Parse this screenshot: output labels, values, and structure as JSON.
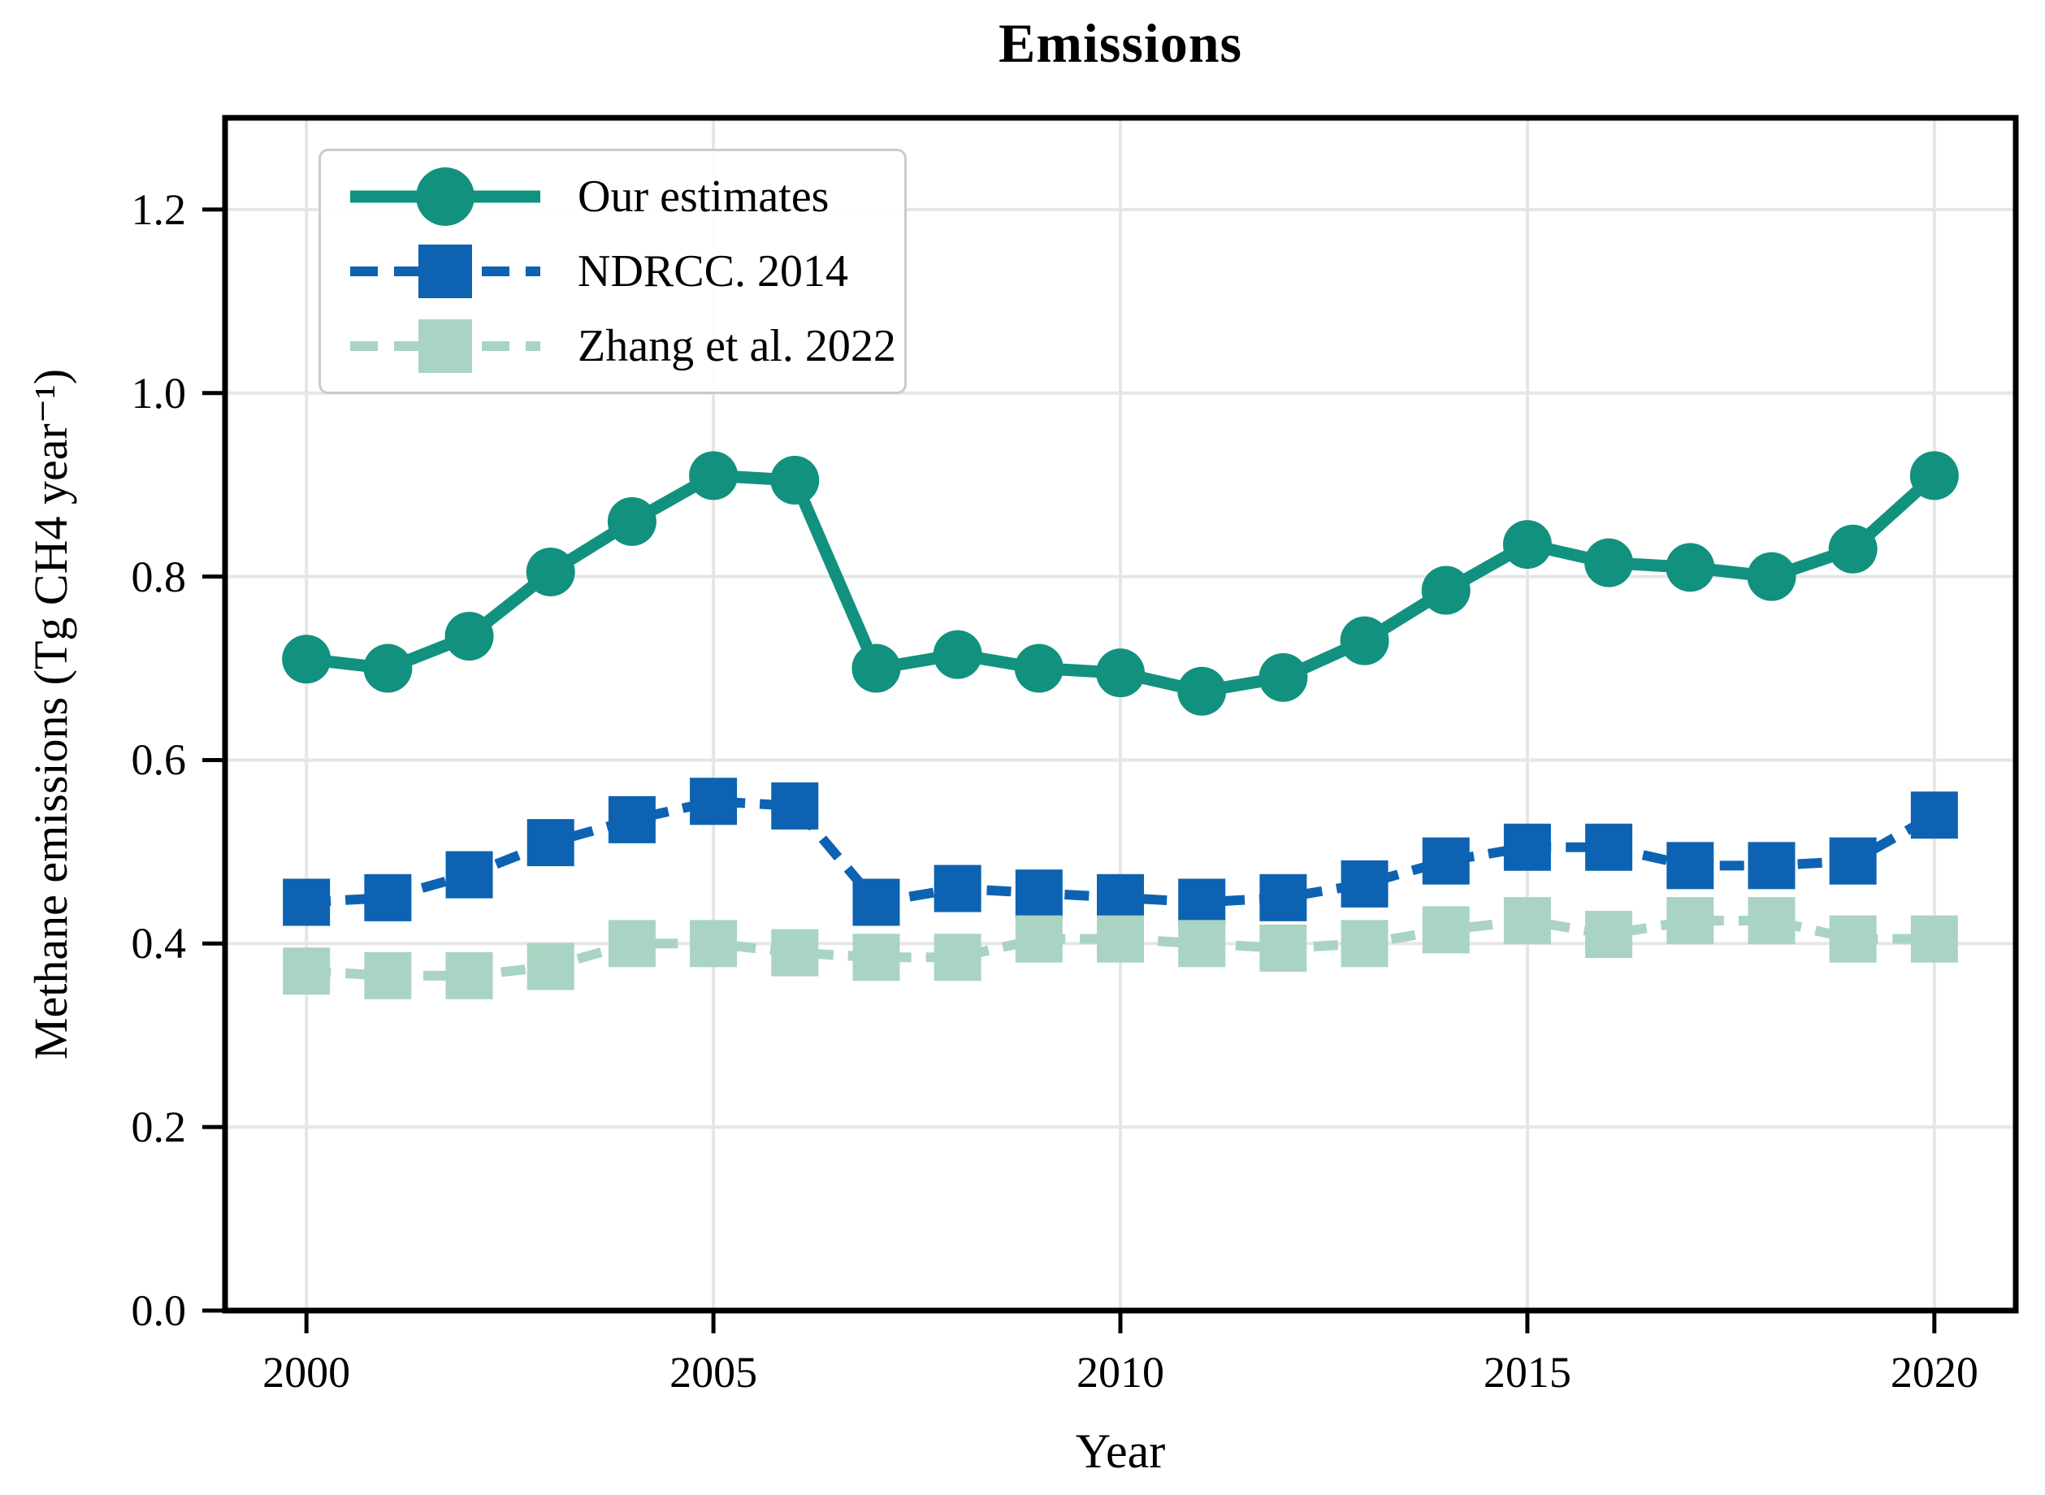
{
  "figure": {
    "title": "Emissions"
  },
  "chart_data": {
    "type": "line",
    "title": "Emissions",
    "xlabel": "Year",
    "ylabel": "Methane emissions (Tg CH4 year⁻¹)",
    "xlim": [
      1999,
      2021
    ],
    "ylim": [
      0.0,
      1.3
    ],
    "xticks": [
      2000,
      2005,
      2010,
      2015,
      2020
    ],
    "yticks": [
      0.0,
      0.2,
      0.4,
      0.6,
      0.8,
      1.0,
      1.2
    ],
    "grid": true,
    "grid_color": "#e6e6e6",
    "spine_color": "#000000",
    "legend_position": "upper-left",
    "x": [
      2000,
      2001,
      2002,
      2003,
      2004,
      2005,
      2006,
      2007,
      2008,
      2009,
      2010,
      2011,
      2012,
      2013,
      2014,
      2015,
      2016,
      2017,
      2018,
      2019,
      2020
    ],
    "series": [
      {
        "name": "Our estimates",
        "color": "#12917f",
        "marker": "circle",
        "linestyle": "solid",
        "values": [
          0.71,
          0.7,
          0.735,
          0.805,
          0.86,
          0.91,
          0.905,
          0.7,
          0.715,
          0.7,
          0.695,
          0.675,
          0.69,
          0.73,
          0.785,
          0.835,
          0.815,
          0.81,
          0.8,
          0.83,
          0.91
        ]
      },
      {
        "name": "NDRCC. 2014",
        "color": "#0d63b2",
        "marker": "square",
        "linestyle": "dashed",
        "values": [
          0.445,
          0.45,
          0.475,
          0.51,
          0.535,
          0.555,
          0.55,
          0.445,
          0.46,
          0.455,
          0.45,
          0.445,
          0.45,
          0.465,
          0.49,
          0.505,
          0.505,
          0.485,
          0.485,
          0.49,
          0.54
        ]
      },
      {
        "name": "Zhang et al. 2022",
        "color": "#a9d4c3",
        "marker": "square",
        "linestyle": "dashed",
        "values": [
          0.37,
          0.365,
          0.365,
          0.375,
          0.4,
          0.4,
          0.39,
          0.385,
          0.385,
          0.405,
          0.405,
          0.4,
          0.395,
          0.4,
          0.415,
          0.425,
          0.41,
          0.425,
          0.425,
          0.405,
          0.405
        ]
      }
    ]
  }
}
